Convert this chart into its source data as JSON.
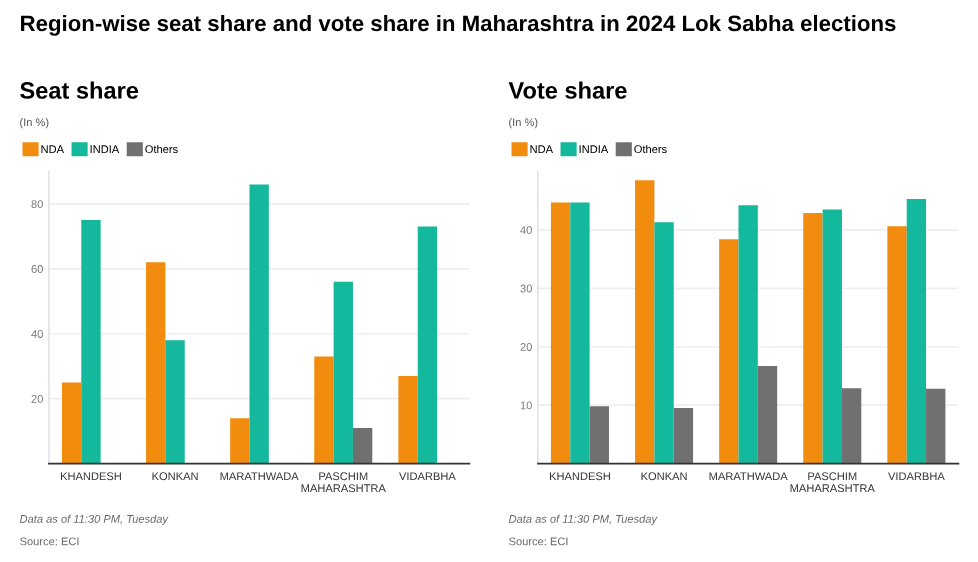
{
  "chart_data": [
    {
      "type": "bar",
      "title": "Region-wise seat share and vote share in Maharashtra in 2024 Lok Sabha elections",
      "subtitle": "Seat share",
      "ylabel": "(In %)",
      "categories": [
        "KHANDESH",
        "KONKAN",
        "MARATHWADA",
        "PASCHIM\nMAHARASHTRA",
        "VIDARBHA"
      ],
      "series": [
        {
          "name": "NDA",
          "color": "#f28c0f",
          "values": [
            25,
            62,
            14,
            33,
            27
          ]
        },
        {
          "name": "INDIA",
          "color": "#14b89c",
          "values": [
            75,
            38,
            86,
            56,
            73
          ]
        },
        {
          "name": "Others",
          "color": "#707070",
          "values": [
            null,
            null,
            null,
            11,
            null
          ]
        }
      ],
      "ylim": [
        0,
        90
      ],
      "yticks": [
        20,
        40,
        60,
        80
      ],
      "grid": "y",
      "legend": "top left",
      "annotations": [
        "Data as of 11:30 PM, Tuesday",
        "Source: ECI"
      ]
    },
    {
      "type": "bar",
      "subtitle": "Vote share",
      "ylabel": "(In %)",
      "categories": [
        "KHANDESH",
        "KONKAN",
        "MARATHWADA",
        "PASCHIM\nMAHARASHTRA",
        "VIDARBHA"
      ],
      "series": [
        {
          "name": "NDA",
          "color": "#f28c0f",
          "values": [
            44.7,
            48.5,
            38.4,
            42.9,
            40.6
          ]
        },
        {
          "name": "INDIA",
          "color": "#14b89c",
          "values": [
            44.7,
            41.3,
            44.2,
            43.5,
            45.3
          ]
        },
        {
          "name": "Others",
          "color": "#707070",
          "values": [
            9.8,
            9.5,
            16.7,
            12.9,
            12.8
          ]
        }
      ],
      "ylim": [
        0,
        50
      ],
      "yticks": [
        10,
        20,
        30,
        40
      ],
      "grid": "y",
      "legend": "top left",
      "annotations": [
        "Data as of 11:30 PM, Tuesday",
        "Source: ECI"
      ]
    }
  ]
}
